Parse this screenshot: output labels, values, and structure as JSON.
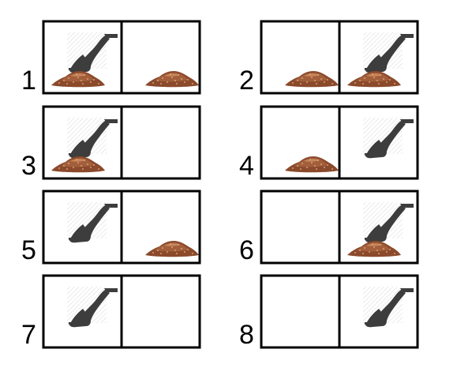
{
  "figure": {
    "colors": {
      "background": "#ffffff",
      "border": "#000000",
      "shovel": "#3d3d3d",
      "shovel_hatch": "#e3e3e3",
      "dirt_base": "#8b4a2c",
      "dirt_mid": "#a35f3b",
      "dirt_light": "#c9875c",
      "dirt_speck": "#e2b48a"
    },
    "panels": [
      {
        "label": "1",
        "cells": [
          {
            "shovel": true,
            "dirt": true
          },
          {
            "shovel": false,
            "dirt": true
          }
        ]
      },
      {
        "label": "2",
        "cells": [
          {
            "shovel": false,
            "dirt": true
          },
          {
            "shovel": true,
            "dirt": true
          }
        ]
      },
      {
        "label": "3",
        "cells": [
          {
            "shovel": true,
            "dirt": true
          },
          {
            "shovel": false,
            "dirt": false
          }
        ]
      },
      {
        "label": "4",
        "cells": [
          {
            "shovel": false,
            "dirt": true
          },
          {
            "shovel": true,
            "dirt": false
          }
        ]
      },
      {
        "label": "5",
        "cells": [
          {
            "shovel": true,
            "dirt": false
          },
          {
            "shovel": false,
            "dirt": true
          }
        ]
      },
      {
        "label": "6",
        "cells": [
          {
            "shovel": false,
            "dirt": false
          },
          {
            "shovel": true,
            "dirt": true
          }
        ]
      },
      {
        "label": "7",
        "cells": [
          {
            "shovel": true,
            "dirt": false
          },
          {
            "shovel": false,
            "dirt": false
          }
        ]
      },
      {
        "label": "8",
        "cells": [
          {
            "shovel": false,
            "dirt": false
          },
          {
            "shovel": true,
            "dirt": false
          }
        ]
      }
    ]
  }
}
